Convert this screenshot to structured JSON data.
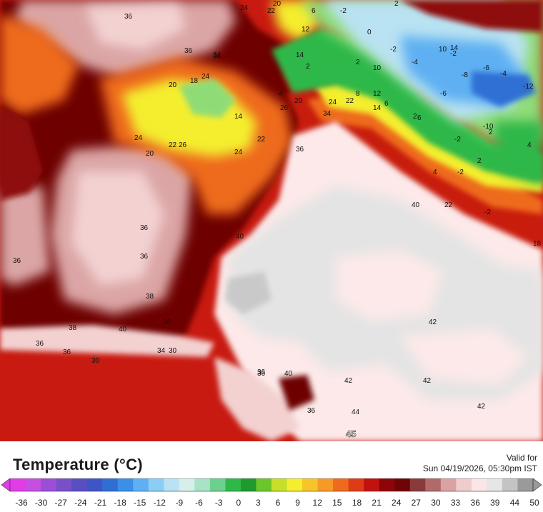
{
  "legend": {
    "title": "Temperature (°C)",
    "valid_for_label": "Valid for",
    "valid_time": "Sun 04/19/2026, 05:30pm IST",
    "ticks": [
      "-36",
      "-30",
      "-27",
      "-24",
      "-21",
      "-18",
      "-15",
      "-12",
      "-9",
      "-6",
      "-3",
      "0",
      "3",
      "6",
      "9",
      "12",
      "15",
      "18",
      "21",
      "24",
      "27",
      "30",
      "33",
      "36",
      "39",
      "44",
      "50"
    ],
    "colors": [
      "#e23be8",
      "#c64ee0",
      "#9b4fd6",
      "#7a50c9",
      "#5a4fc0",
      "#3f55c5",
      "#2f6fd4",
      "#3b8fe6",
      "#5fb0f2",
      "#8ccdf5",
      "#b9e2f2",
      "#d6efea",
      "#a9e3c6",
      "#6cd08f",
      "#2fb84a",
      "#1e9a2e",
      "#6cc62a",
      "#c6e02a",
      "#f4ee2e",
      "#f7c52a",
      "#f59a27",
      "#ee6a1f",
      "#df3b17",
      "#c2120e",
      "#8d0508",
      "#6e0406",
      "#8a3a3a",
      "#b06a6a",
      "#d9a3a3",
      "#f0cccc",
      "#fae6e6",
      "#e6e6e6",
      "#c4c4c4",
      "#9a9a9a"
    ]
  },
  "map": {
    "colors": {
      "hot_low": "#c81a10",
      "hot_high": "#8e0a08",
      "maroon": "#6e0406",
      "pink_light": "#f3d1d1",
      "pink_mid": "#dba5a5",
      "pink_dark": "#b06565",
      "grey_light": "#e4e4e4",
      "grey_mid": "#c9c9c9",
      "snow_pink": "#fde9e9",
      "orange": "#ee6a1f",
      "yellow": "#f4ee2e",
      "green": "#2fb84a",
      "light_green": "#8fdc77",
      "cyan": "#b9e2f2",
      "blue": "#5fb0f2",
      "dark_blue": "#2f6fd4"
    },
    "labels": [
      {
        "t": "36"
      },
      {
        "t": "20"
      },
      {
        "t": "24"
      },
      {
        "t": "22"
      },
      {
        "t": "6"
      },
      {
        "t": "-2"
      },
      {
        "t": "2"
      },
      {
        "t": "0"
      },
      {
        "t": "12"
      },
      {
        "t": "36"
      },
      {
        "t": "34"
      },
      {
        "t": "14"
      },
      {
        "t": "2"
      },
      {
        "t": "-2"
      },
      {
        "t": "-4"
      },
      {
        "t": "10"
      },
      {
        "t": "14"
      },
      {
        "t": "-2"
      },
      {
        "t": "2"
      },
      {
        "t": "10"
      },
      {
        "t": "-6"
      },
      {
        "t": "-4"
      },
      {
        "t": "-8"
      },
      {
        "t": "-12"
      },
      {
        "t": "20"
      },
      {
        "t": "18"
      },
      {
        "t": "24"
      },
      {
        "t": "4"
      },
      {
        "t": "8"
      },
      {
        "t": "12"
      },
      {
        "t": "-6"
      },
      {
        "t": "20"
      },
      {
        "t": "22"
      },
      {
        "t": "14"
      },
      {
        "t": "6"
      },
      {
        "t": "26"
      },
      {
        "t": "24"
      },
      {
        "t": "34"
      },
      {
        "t": "2"
      },
      {
        "t": "6"
      },
      {
        "t": "14"
      },
      {
        "t": "-10"
      },
      {
        "t": "2"
      },
      {
        "t": "24"
      },
      {
        "t": "22"
      },
      {
        "t": "-2"
      },
      {
        "t": "4"
      },
      {
        "t": "20"
      },
      {
        "t": "22"
      },
      {
        "t": "26"
      },
      {
        "t": "36"
      },
      {
        "t": "24"
      },
      {
        "t": "2"
      },
      {
        "t": "-2"
      },
      {
        "t": "4"
      },
      {
        "t": "40"
      },
      {
        "t": "22"
      },
      {
        "t": "-2"
      },
      {
        "t": "36"
      },
      {
        "t": "36"
      },
      {
        "t": "38"
      },
      {
        "t": "40"
      },
      {
        "t": "34"
      },
      {
        "t": "18"
      },
      {
        "t": "36"
      },
      {
        "t": "38"
      },
      {
        "t": "36"
      },
      {
        "t": "40"
      },
      {
        "t": "36"
      },
      {
        "t": "36"
      },
      {
        "t": "34"
      },
      {
        "t": "30"
      },
      {
        "t": "42"
      },
      {
        "t": "36"
      },
      {
        "t": "40"
      },
      {
        "t": "42"
      },
      {
        "t": "42"
      },
      {
        "t": "42"
      },
      {
        "t": "36"
      },
      {
        "t": "44"
      },
      {
        "t": "30"
      },
      {
        "t": "36"
      }
    ],
    "peak_label": "45"
  }
}
